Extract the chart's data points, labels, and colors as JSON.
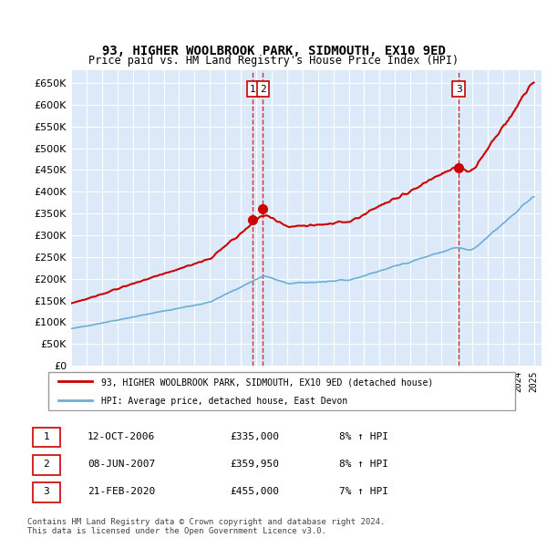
{
  "title": "93, HIGHER WOOLBROOK PARK, SIDMOUTH, EX10 9ED",
  "subtitle": "Price paid vs. HM Land Registry's House Price Index (HPI)",
  "legend_line1": "93, HIGHER WOOLBROOK PARK, SIDMOUTH, EX10 9ED (detached house)",
  "legend_line2": "HPI: Average price, detached house, East Devon",
  "footer1": "Contains HM Land Registry data © Crown copyright and database right 2024.",
  "footer2": "This data is licensed under the Open Government Licence v3.0.",
  "transactions": [
    {
      "num": 1,
      "date": "12-OCT-2006",
      "price": "£335,000",
      "pct": "8% ↑ HPI",
      "year": 2006.79
    },
    {
      "num": 2,
      "date": "08-JUN-2007",
      "price": "£359,950",
      "pct": "8% ↑ HPI",
      "year": 2007.44
    },
    {
      "num": 3,
      "date": "21-FEB-2020",
      "price": "£455,000",
      "pct": "7% ↑ HPI",
      "year": 2020.13
    }
  ],
  "ylim": [
    0,
    680000
  ],
  "yticks": [
    0,
    50000,
    100000,
    150000,
    200000,
    250000,
    300000,
    350000,
    400000,
    450000,
    500000,
    550000,
    600000,
    650000
  ],
  "background_color": "#dce9f8",
  "plot_bg": "#dce9f8",
  "hpi_color": "#6baed6",
  "price_color": "#cc0000",
  "marker_color": "#cc0000",
  "vline_color": "#cc0000"
}
